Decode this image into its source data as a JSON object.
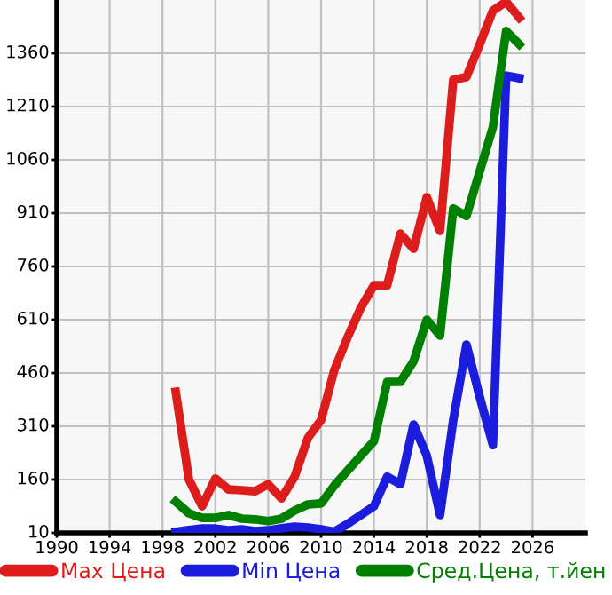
{
  "chart_data": {
    "type": "line",
    "x": [
      1999,
      2000,
      2001,
      2002,
      2003,
      2004,
      2005,
      2006,
      2007,
      2008,
      2009,
      2010,
      2011,
      2012,
      2013,
      2014,
      2015,
      2016,
      2017,
      2018,
      2019,
      2020,
      2021,
      2022,
      2023,
      2024,
      2025
    ],
    "series": [
      {
        "name": "Max Цена",
        "color": "#dd1c1c",
        "values": [
          407,
          160,
          85,
          163,
          132,
          130,
          127,
          147,
          107,
          168,
          277,
          327,
          468,
          560,
          643,
          707,
          707,
          852,
          810,
          955,
          860,
          1285,
          1293,
          1385,
          1480,
          1505,
          1460
        ]
      },
      {
        "name": "Min Цена",
        "color": "#1c1cdd",
        "values": [
          13,
          18,
          22,
          22,
          17,
          20,
          15,
          17,
          23,
          27,
          25,
          20,
          13,
          35,
          60,
          85,
          168,
          147,
          315,
          227,
          60,
          327,
          540,
          393,
          257,
          1297,
          1290
        ]
      },
      {
        "name": "Сред.Цена, т.йен",
        "color": "#008000",
        "values": [
          98,
          65,
          52,
          52,
          60,
          50,
          48,
          43,
          50,
          73,
          90,
          93,
          143,
          185,
          227,
          268,
          435,
          435,
          493,
          610,
          565,
          923,
          902,
          1027,
          1152,
          1423,
          1385
        ]
      }
    ],
    "xlim": [
      1990,
      2030
    ],
    "xticks": [
      1990,
      1994,
      1998,
      2002,
      2006,
      2010,
      2014,
      2018,
      2022,
      2026
    ],
    "ylim": [
      10,
      1510
    ],
    "yticks": [
      10,
      160,
      310,
      460,
      610,
      760,
      910,
      1060,
      1210,
      1360
    ],
    "grid": true,
    "legend": "bottom",
    "marker": "none",
    "line_style": "solid"
  }
}
